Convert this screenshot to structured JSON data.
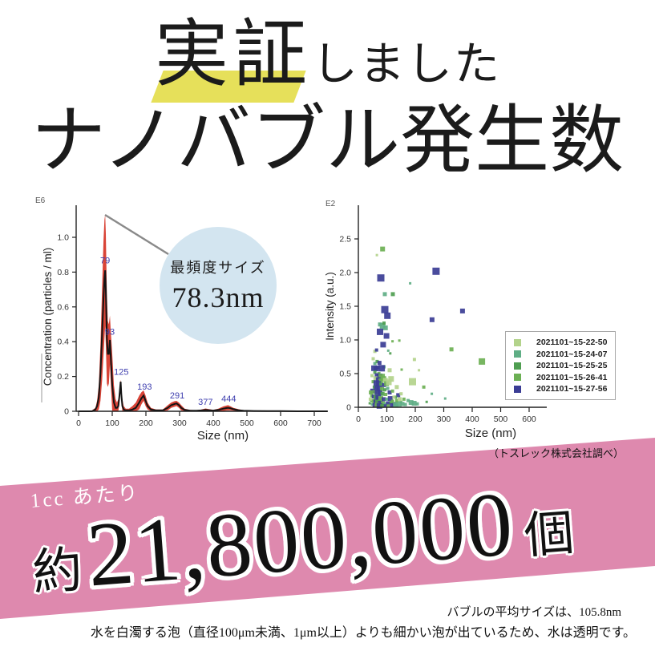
{
  "header": {
    "title_main": "実証",
    "title_suffix": "しました",
    "subtitle": "ナノバブル発生数",
    "highlight_color": "#e6e05a"
  },
  "callout": {
    "label": "最頻度サイズ",
    "value": "78.3nm"
  },
  "source_note": "（トスレック株式会社調べ）",
  "banner": {
    "prefix": "1cc あたり",
    "approx": "約",
    "count": "21,800,000",
    "unit": "個",
    "color": "#de89ae"
  },
  "footer": {
    "line1": "バブルの平均サイズは、105.8nm",
    "line2": "水を白濁する泡（直径100μm未満、1μm以上）よりも細かい泡が出ているため、水は透明です。"
  },
  "chart_data": [
    {
      "type": "line",
      "corner_label": "E6",
      "xlabel": "Size (nm)",
      "ylabel": "Concentration (particles / ml)",
      "xlim": [
        0,
        740
      ],
      "ylim": [
        0,
        1.15
      ],
      "xticks": [
        "0",
        "100",
        "200",
        "300",
        "400",
        "500",
        "600",
        "700"
      ],
      "yticks": [
        "0",
        "0.2",
        "0.4",
        "0.6",
        "0.8",
        "1.0"
      ],
      "line_color": "#141414",
      "band_color": "#d63426",
      "peak_label_color": "#3d3dae",
      "curve": [
        [
          0,
          0,
          0
        ],
        [
          40,
          0,
          0.005
        ],
        [
          50,
          0.01,
          0.02
        ],
        [
          55,
          0.03,
          0.06
        ],
        [
          60,
          0.08,
          0.15
        ],
        [
          65,
          0.22,
          0.38
        ],
        [
          70,
          0.45,
          0.72
        ],
        [
          74,
          0.65,
          0.98
        ],
        [
          77,
          0.76,
          1.1
        ],
        [
          79,
          0.81,
          1.13
        ],
        [
          81,
          0.7,
          1.02
        ],
        [
          84,
          0.42,
          0.68
        ],
        [
          87,
          0.33,
          0.52
        ],
        [
          90,
          0.33,
          0.5
        ],
        [
          93,
          0.41,
          0.55
        ],
        [
          96,
          0.3,
          0.45
        ],
        [
          100,
          0.15,
          0.33
        ],
        [
          105,
          0.05,
          0.15
        ],
        [
          110,
          0.02,
          0.07
        ],
        [
          114,
          0.02,
          0.05
        ],
        [
          118,
          0.03,
          0.07
        ],
        [
          121,
          0.08,
          0.12
        ],
        [
          124,
          0.15,
          0.17
        ],
        [
          125,
          0.17,
          0.18
        ],
        [
          127,
          0.1,
          0.13
        ],
        [
          130,
          0.03,
          0.07
        ],
        [
          134,
          0.01,
          0.03
        ],
        [
          140,
          0.005,
          0.015
        ],
        [
          150,
          0.005,
          0.015
        ],
        [
          160,
          0.01,
          0.03
        ],
        [
          170,
          0.02,
          0.05
        ],
        [
          180,
          0.05,
          0.09
        ],
        [
          187,
          0.075,
          0.11
        ],
        [
          193,
          0.09,
          0.12
        ],
        [
          199,
          0.06,
          0.09
        ],
        [
          205,
          0.03,
          0.05
        ],
        [
          215,
          0.01,
          0.02
        ],
        [
          230,
          0.005,
          0.01
        ],
        [
          250,
          0.005,
          0.01
        ],
        [
          265,
          0.02,
          0.035
        ],
        [
          275,
          0.035,
          0.05
        ],
        [
          285,
          0.042,
          0.058
        ],
        [
          291,
          0.045,
          0.06
        ],
        [
          298,
          0.035,
          0.05
        ],
        [
          305,
          0.02,
          0.035
        ],
        [
          315,
          0.008,
          0.015
        ],
        [
          330,
          0.004,
          0.008
        ],
        [
          350,
          0.003,
          0.006
        ],
        [
          365,
          0.005,
          0.01
        ],
        [
          377,
          0.008,
          0.016
        ],
        [
          388,
          0.006,
          0.012
        ],
        [
          400,
          0.004,
          0.008
        ],
        [
          415,
          0.008,
          0.015
        ],
        [
          430,
          0.015,
          0.028
        ],
        [
          440,
          0.019,
          0.033
        ],
        [
          444,
          0.02,
          0.035
        ],
        [
          450,
          0.018,
          0.03
        ],
        [
          460,
          0.012,
          0.02
        ],
        [
          475,
          0.006,
          0.012
        ],
        [
          490,
          0.003,
          0.006
        ],
        [
          520,
          0.002,
          0.004
        ],
        [
          560,
          0.001,
          0.003
        ],
        [
          600,
          0.001,
          0.002
        ],
        [
          650,
          0,
          0.002
        ],
        [
          700,
          0,
          0.001
        ],
        [
          740,
          0,
          0
        ]
      ],
      "peak_labels": [
        {
          "x": 79,
          "y": 0.84,
          "label": "79"
        },
        {
          "x": 93,
          "y": 0.43,
          "label": "93"
        },
        {
          "x": 127,
          "y": 0.2,
          "label": "125"
        },
        {
          "x": 196,
          "y": 0.115,
          "label": "193"
        },
        {
          "x": 293,
          "y": 0.065,
          "label": "291"
        },
        {
          "x": 377,
          "y": 0.028,
          "label": "377"
        },
        {
          "x": 446,
          "y": 0.045,
          "label": "444"
        }
      ]
    },
    {
      "type": "scatter",
      "corner_label": "E2",
      "xlabel": "Size (nm)",
      "ylabel": "Intensity (a.u.)",
      "xlim": [
        0,
        650
      ],
      "ylim": [
        0,
        2.95
      ],
      "xticks": [
        "0",
        "100",
        "200",
        "300",
        "400",
        "500",
        "600"
      ],
      "yticks": [
        "0",
        "0.5",
        "1.0",
        "1.5",
        "2.0",
        "2.5"
      ],
      "legend": [
        {
          "name": "2021101~15-22-50",
          "color": "#b3d38b"
        },
        {
          "name": "2021101~15-24-07",
          "color": "#5fae85"
        },
        {
          "name": "2021101~15-25-25",
          "color": "#4f9e51"
        },
        {
          "name": "2021101~15-26-41",
          "color": "#6cb054"
        },
        {
          "name": "2021101~15-27-56",
          "color": "#3b3d95"
        }
      ],
      "points": [
        [
          85,
          2.35,
          3,
          6
        ],
        [
          65,
          2.26,
          0,
          3
        ],
        [
          79,
          1.92,
          4,
          9
        ],
        [
          273,
          2.02,
          4,
          9
        ],
        [
          182,
          1.84,
          1,
          3
        ],
        [
          93,
          1.68,
          1,
          5
        ],
        [
          121,
          1.68,
          2,
          5
        ],
        [
          93,
          1.45,
          4,
          9
        ],
        [
          102,
          1.36,
          4,
          8
        ],
        [
          366,
          1.43,
          4,
          6
        ],
        [
          259,
          1.3,
          4,
          6
        ],
        [
          76,
          1.23,
          1,
          5
        ],
        [
          85,
          1.21,
          1,
          7
        ],
        [
          95,
          1.18,
          1,
          6
        ],
        [
          90,
          1.25,
          2,
          4
        ],
        [
          76,
          1.12,
          4,
          8
        ],
        [
          99,
          1.06,
          4,
          7
        ],
        [
          144,
          0.99,
          3,
          3
        ],
        [
          87,
          0.93,
          4,
          7
        ],
        [
          327,
          0.86,
          3,
          5
        ],
        [
          434,
          0.68,
          3,
          8
        ],
        [
          197,
          0.71,
          0,
          4
        ],
        [
          190,
          0.38,
          0,
          9
        ],
        [
          152,
          0.56,
          3,
          3
        ],
        [
          213,
          0.55,
          0,
          3
        ],
        [
          230,
          0.3,
          3,
          4
        ],
        [
          258,
          0.2,
          1,
          3
        ],
        [
          305,
          0.13,
          1,
          3
        ],
        [
          240,
          0.08,
          2,
          3
        ],
        [
          175,
          0.1,
          1,
          4
        ],
        [
          185,
          0.07,
          1,
          6
        ],
        [
          196,
          0.06,
          1,
          6
        ],
        [
          207,
          0.05,
          1,
          4
        ],
        [
          160,
          0.12,
          3,
          4
        ],
        [
          140,
          0.18,
          4,
          5
        ],
        [
          130,
          0.15,
          2,
          4
        ],
        [
          150,
          0.08,
          2,
          3
        ],
        [
          125,
          0.05,
          4,
          5
        ],
        [
          135,
          0.02,
          1,
          4
        ],
        [
          58,
          0.83,
          0,
          4
        ],
        [
          64,
          0.85,
          4,
          4
        ],
        [
          105,
          0.84,
          1,
          3
        ],
        [
          112,
          0.8,
          2,
          3
        ],
        [
          55,
          0.58,
          4,
          7
        ],
        [
          62,
          0.57,
          4,
          6
        ],
        [
          68,
          0.59,
          4,
          5
        ],
        [
          58,
          0.52,
          2,
          4
        ],
        [
          72,
          0.5,
          3,
          4
        ],
        [
          66,
          0.47,
          4,
          6
        ],
        [
          75,
          0.46,
          4,
          7
        ],
        [
          82,
          0.45,
          3,
          8
        ],
        [
          60,
          0.43,
          0,
          5
        ],
        [
          70,
          0.41,
          4,
          6
        ],
        [
          78,
          0.4,
          3,
          5
        ],
        [
          88,
          0.42,
          3,
          7
        ],
        [
          95,
          0.4,
          0,
          6
        ],
        [
          52,
          0.38,
          3,
          4
        ],
        [
          63,
          0.36,
          4,
          7
        ],
        [
          71,
          0.35,
          4,
          6
        ],
        [
          80,
          0.34,
          2,
          5
        ],
        [
          90,
          0.33,
          4,
          5
        ],
        [
          99,
          0.35,
          3,
          6
        ],
        [
          107,
          0.37,
          0,
          7
        ],
        [
          56,
          0.3,
          2,
          4
        ],
        [
          64,
          0.29,
          4,
          6
        ],
        [
          73,
          0.28,
          4,
          7
        ],
        [
          83,
          0.27,
          3,
          5
        ],
        [
          93,
          0.26,
          2,
          4
        ],
        [
          103,
          0.28,
          1,
          4
        ],
        [
          50,
          0.24,
          4,
          6
        ],
        [
          59,
          0.23,
          3,
          5
        ],
        [
          67,
          0.22,
          4,
          7
        ],
        [
          76,
          0.21,
          4,
          6
        ],
        [
          85,
          0.2,
          2,
          5
        ],
        [
          96,
          0.19,
          3,
          4
        ],
        [
          110,
          0.22,
          4,
          5
        ],
        [
          120,
          0.24,
          3,
          4
        ],
        [
          47,
          0.17,
          3,
          4
        ],
        [
          54,
          0.16,
          4,
          5
        ],
        [
          62,
          0.15,
          2,
          6
        ],
        [
          70,
          0.14,
          4,
          7
        ],
        [
          79,
          0.13,
          3,
          6
        ],
        [
          89,
          0.12,
          4,
          5
        ],
        [
          100,
          0.12,
          1,
          4
        ],
        [
          112,
          0.13,
          4,
          6
        ],
        [
          125,
          0.15,
          0,
          4
        ],
        [
          45,
          0.1,
          2,
          3
        ],
        [
          53,
          0.09,
          3,
          5
        ],
        [
          61,
          0.08,
          4,
          6
        ],
        [
          69,
          0.07,
          2,
          7
        ],
        [
          77,
          0.06,
          4,
          6
        ],
        [
          86,
          0.06,
          3,
          5
        ],
        [
          94,
          0.05,
          1,
          4
        ],
        [
          104,
          0.06,
          4,
          5
        ],
        [
          115,
          0.07,
          2,
          4
        ],
        [
          48,
          0.04,
          1,
          3
        ],
        [
          57,
          0.03,
          4,
          5
        ],
        [
          66,
          0.03,
          3,
          6
        ],
        [
          74,
          0.02,
          4,
          7
        ],
        [
          84,
          0.02,
          2,
          5
        ],
        [
          95,
          0.02,
          4,
          4
        ],
        [
          105,
          0.02,
          3,
          4
        ],
        [
          118,
          0.03,
          4,
          5
        ],
        [
          130,
          0.04,
          1,
          6
        ],
        [
          142,
          0.05,
          1,
          7
        ],
        [
          155,
          0.05,
          1,
          5
        ],
        [
          165,
          0.04,
          1,
          4
        ],
        [
          135,
          0.1,
          3,
          4
        ],
        [
          145,
          0.12,
          0,
          5
        ],
        [
          58,
          0.65,
          1,
          4
        ],
        [
          66,
          0.68,
          2,
          4
        ],
        [
          74,
          0.66,
          4,
          5
        ],
        [
          52,
          0.72,
          0,
          4
        ],
        [
          90,
          0.6,
          1,
          4
        ],
        [
          82,
          0.58,
          4,
          8
        ],
        [
          110,
          0.55,
          0,
          5
        ],
        [
          115,
          0.42,
          0,
          7
        ],
        [
          48,
          0.47,
          0,
          4
        ],
        [
          44,
          0.22,
          3,
          5
        ],
        [
          42,
          0.12,
          0,
          4
        ],
        [
          40,
          0.06,
          2,
          3
        ],
        [
          120,
          0.09,
          3,
          4
        ],
        [
          150,
          0.2,
          0,
          4
        ],
        [
          135,
          0.3,
          0,
          5
        ],
        [
          120,
          0.98,
          3,
          3
        ]
      ]
    }
  ]
}
